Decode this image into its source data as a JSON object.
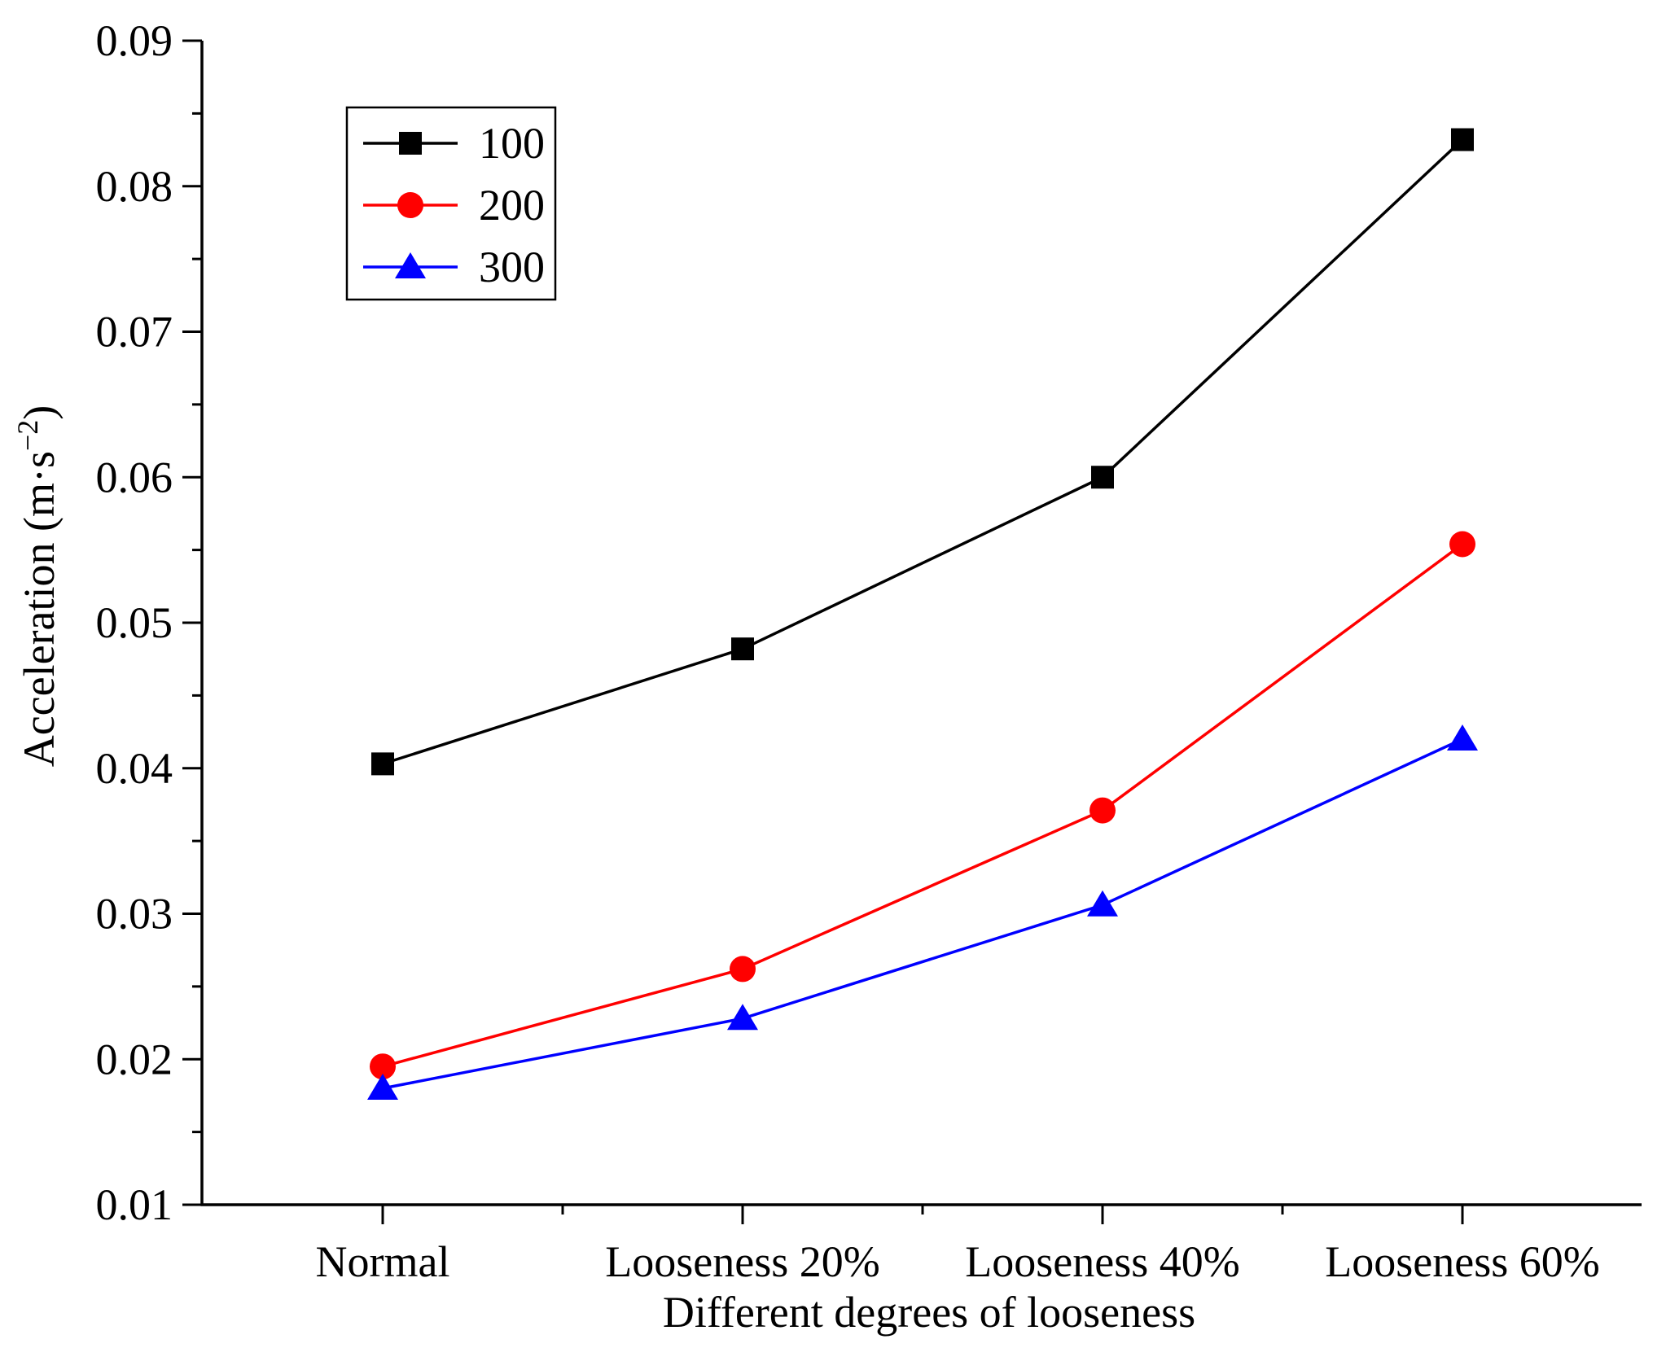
{
  "chart_data": {
    "type": "line",
    "title": "",
    "xlabel": "Different degrees of looseness",
    "ylabel": {
      "main": "Acceleration (m·s",
      "superscript": "−2",
      "close": ")"
    },
    "categories": [
      "Normal",
      "Looseness 20%",
      "Looseness 40%",
      "Looseness 60%"
    ],
    "ylim": [
      0.01,
      0.09
    ],
    "yticks": [
      "0.01",
      "0.02",
      "0.03",
      "0.04",
      "0.05",
      "0.06",
      "0.07",
      "0.08",
      "0.09"
    ],
    "grid": false,
    "legend_position": "top-left",
    "series": [
      {
        "name": "100",
        "color": "#000000",
        "marker": "square",
        "values": [
          0.0403,
          0.0482,
          0.06,
          0.0832
        ]
      },
      {
        "name": "200",
        "color": "#ff0000",
        "marker": "circle",
        "values": [
          0.0195,
          0.0262,
          0.0371,
          0.0554
        ]
      },
      {
        "name": "300",
        "color": "#0000ff",
        "marker": "triangle",
        "values": [
          0.018,
          0.0228,
          0.0306,
          0.042
        ]
      }
    ]
  }
}
